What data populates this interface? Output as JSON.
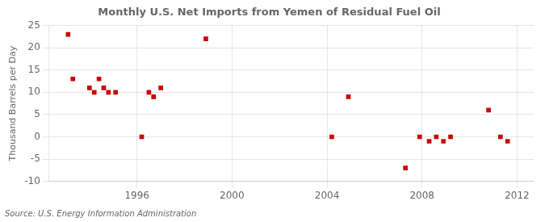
{
  "chart_data": {
    "type": "scatter",
    "title": "Monthly U.S. Net Imports from Yemen of Residual Fuel Oil",
    "ylabel": "Thousand Barrels per Day",
    "annotations": [
      "Source: U.S. Energy Information Administration"
    ],
    "x": [
      1993.1,
      1993.3,
      1994.0,
      1994.2,
      1994.4,
      1994.6,
      1994.8,
      1995.1,
      1996.2,
      1996.5,
      1996.7,
      1997.0,
      1998.9,
      2004.2,
      2004.9,
      2007.3,
      2007.9,
      2008.3,
      2008.6,
      2008.9,
      2009.2,
      2010.8,
      2011.3,
      2011.6
    ],
    "values": [
      23,
      13,
      11,
      10,
      13,
      11,
      10,
      10,
      0,
      10,
      9,
      11,
      22,
      0,
      9,
      -7,
      0,
      -1,
      0,
      -1,
      0,
      6,
      0,
      -1
    ],
    "color": "#CC0000",
    "marker": "square",
    "xlim": [
      1992.3,
      2012.7
    ],
    "xticks": [
      1996,
      2000,
      2004,
      2008,
      2012
    ],
    "ylim": [
      -10,
      25
    ],
    "yticks": [
      -10,
      -5,
      0,
      5,
      10,
      15,
      20,
      25
    ],
    "grid": true
  }
}
